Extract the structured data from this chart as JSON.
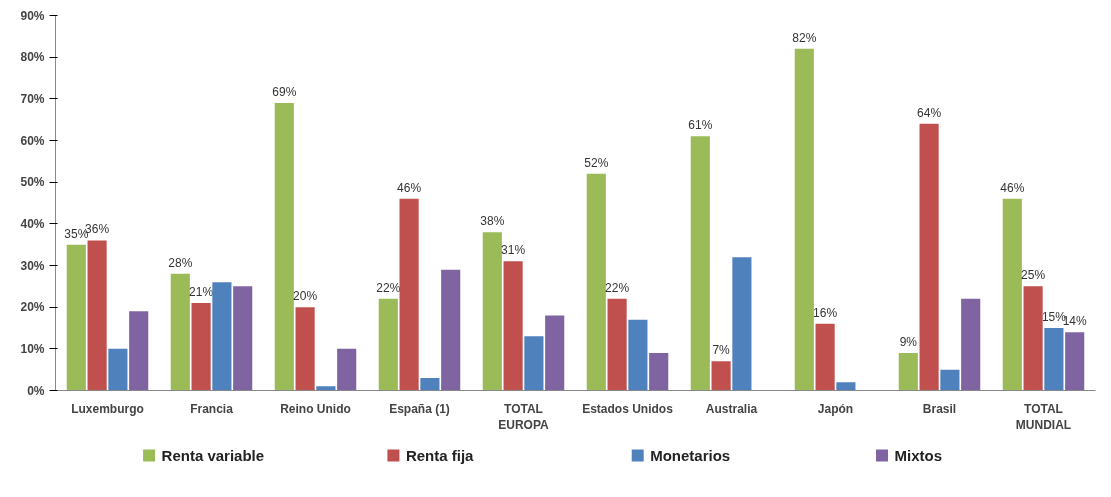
{
  "chart_data": {
    "type": "bar",
    "categories": [
      "Luxemburgo",
      "Francia",
      "Reino Unido",
      "España (1)",
      "TOTAL\nEUROPA",
      "Estados Unidos",
      "Australia",
      "Japón",
      "Brasil",
      "TOTAL\nMUNDIAL"
    ],
    "series": [
      {
        "name": "Renta variable",
        "color": "#9bbb59",
        "values": [
          35,
          28,
          69,
          22,
          38,
          52,
          61,
          82,
          9,
          46
        ],
        "value_labels": [
          "35%",
          "28%",
          "69%",
          "22%",
          "38%",
          "52%",
          "61%",
          "82%",
          "9%",
          "46%"
        ]
      },
      {
        "name": "Renta fija",
        "color": "#c0504d",
        "values": [
          36,
          21,
          20,
          46,
          31,
          22,
          7,
          16,
          64,
          25
        ],
        "value_labels": [
          "36%",
          "21%",
          "20%",
          "46%",
          "31%",
          "22%",
          "7%",
          "16%",
          "64%",
          "25%"
        ]
      },
      {
        "name": "Monetarios",
        "color": "#4f81bd",
        "values": [
          10,
          26,
          1,
          3,
          13,
          17,
          32,
          2,
          5,
          15
        ],
        "value_labels": [
          null,
          null,
          null,
          null,
          null,
          null,
          null,
          null,
          null,
          "15%"
        ]
      },
      {
        "name": "Mixtos",
        "color": "#8064a2",
        "values": [
          19,
          25,
          10,
          29,
          18,
          9,
          0,
          0,
          22,
          14
        ],
        "value_labels": [
          null,
          null,
          null,
          null,
          null,
          null,
          null,
          null,
          null,
          "14%"
        ]
      }
    ],
    "ylim": [
      0,
      90
    ],
    "yticks": [
      {
        "value": 0,
        "label": "0%"
      },
      {
        "value": 10,
        "label": "10%"
      },
      {
        "value": 20,
        "label": "20%"
      },
      {
        "value": 30,
        "label": "30%"
      },
      {
        "value": 40,
        "label": "40%"
      },
      {
        "value": 50,
        "label": "50%"
      },
      {
        "value": 60,
        "label": "60%"
      },
      {
        "value": 70,
        "label": "70%"
      },
      {
        "value": 80,
        "label": "80%"
      },
      {
        "value": 90,
        "label": "90%"
      }
    ],
    "grid": false,
    "legend": "bottom"
  }
}
